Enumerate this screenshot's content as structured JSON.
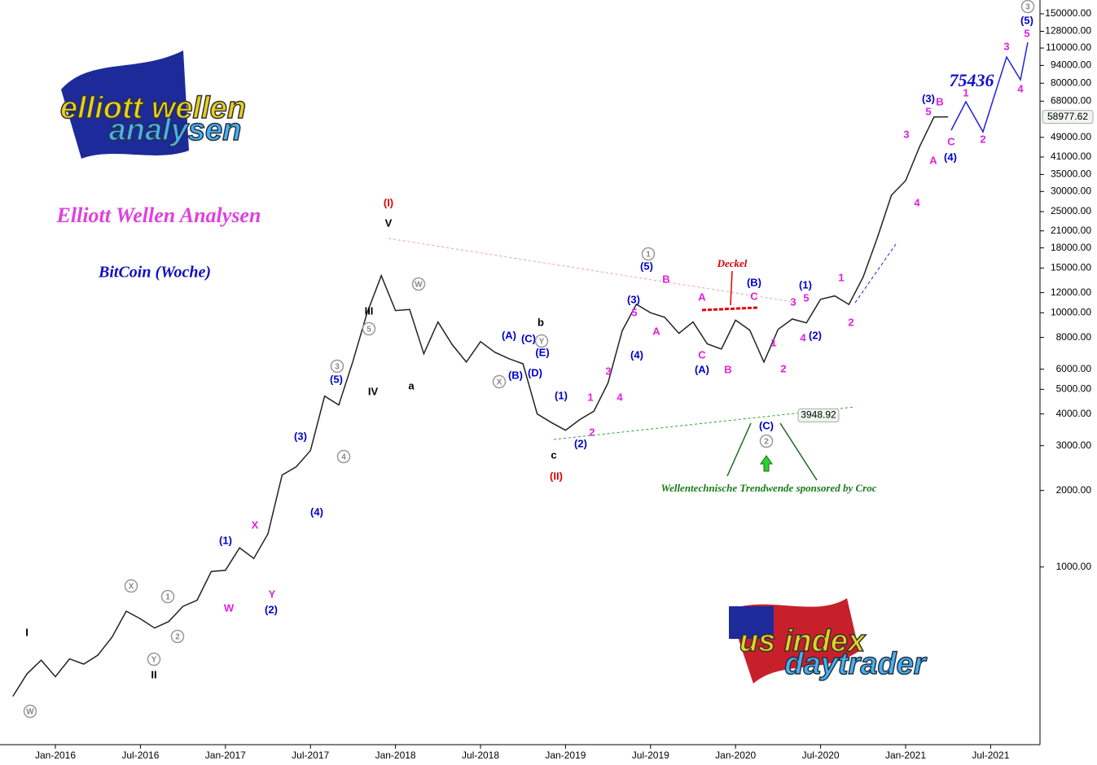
{
  "chart_data": {
    "type": "line",
    "title": "Elliott Wellen Analysen",
    "subtitle": "BitCoin (Woche)",
    "logo_top": [
      "elliott wellen",
      "analysen"
    ],
    "logo_bottom": [
      "us index",
      "daytrader"
    ],
    "annotation_note": "Wellentechnische Trendwende sponsored by Croc",
    "low_label": {
      "value": 3948.92,
      "label": "3948.92"
    },
    "last_label": {
      "value": 58977.62,
      "label": "58977.62"
    },
    "target_label": "75436",
    "log_scale": true,
    "color": "#222222",
    "x": [
      "2015-10",
      "2015-11",
      "2015-12",
      "2016-01",
      "2016-02",
      "2016-03",
      "2016-04",
      "2016-05",
      "2016-06",
      "2016-07",
      "2016-08",
      "2016-09",
      "2016-10",
      "2016-11",
      "2016-12",
      "2017-01",
      "2017-02",
      "2017-03",
      "2017-04",
      "2017-05",
      "2017-06",
      "2017-07",
      "2017-08",
      "2017-09",
      "2017-10",
      "2017-11",
      "2017-12",
      "2018-01",
      "2018-02",
      "2018-03",
      "2018-04",
      "2018-05",
      "2018-06",
      "2018-07",
      "2018-08",
      "2018-09",
      "2018-10",
      "2018-11",
      "2018-12",
      "2019-01",
      "2019-02",
      "2019-03",
      "2019-04",
      "2019-05",
      "2019-06",
      "2019-07",
      "2019-08",
      "2019-09",
      "2019-10",
      "2019-11",
      "2019-12",
      "2020-01",
      "2020-02",
      "2020-03",
      "2020-04",
      "2020-05",
      "2020-06",
      "2020-07",
      "2020-08",
      "2020-09",
      "2020-10",
      "2020-11",
      "2020-12",
      "2021-01",
      "2021-02",
      "2021-03",
      "2021-04"
    ],
    "values": [
      310,
      380,
      430,
      370,
      435,
      415,
      450,
      530,
      670,
      625,
      575,
      610,
      700,
      740,
      960,
      970,
      1190,
      1080,
      1350,
      2300,
      2480,
      2870,
      4700,
      4340,
      6450,
      10000,
      14000,
      10200,
      10300,
      6900,
      9200,
      7500,
      6400,
      7700,
      7000,
      6600,
      6300,
      4000,
      3700,
      3450,
      3800,
      4100,
      5300,
      8500,
      10800,
      10000,
      9600,
      8300,
      9200,
      7550,
      7200,
      9350,
      8550,
      6400,
      8600,
      9450,
      9130,
      11300,
      11650,
      10780,
      13800,
      19700,
      29000,
      33100,
      45200,
      58900,
      58977.62
    ],
    "xlim": [
      "2015-09",
      "2021-10"
    ],
    "xticks": [
      {
        "value": "2016-01",
        "label": "Jan-2016"
      },
      {
        "value": "2016-07",
        "label": "Jul-2016"
      },
      {
        "value": "2017-01",
        "label": "Jan-2017"
      },
      {
        "value": "2017-07",
        "label": "Jul-2017"
      },
      {
        "value": "2018-01",
        "label": "Jan-2018"
      },
      {
        "value": "2018-07",
        "label": "Jul-2018"
      },
      {
        "value": "2019-01",
        "label": "Jan-2019"
      },
      {
        "value": "2019-07",
        "label": "Jul-2019"
      },
      {
        "value": "2020-01",
        "label": "Jan-2020"
      },
      {
        "value": "2020-07",
        "label": "Jul-2020"
      },
      {
        "value": "2021-01",
        "label": "Jan-2021"
      },
      {
        "value": "2021-07",
        "label": "Jul-2021"
      }
    ],
    "ylim": [
      200,
      170000
    ],
    "yticks": [
      {
        "value": 1000,
        "label": "1000.00"
      },
      {
        "value": 2000,
        "label": "2000.00"
      },
      {
        "value": 3000,
        "label": "3000.00"
      },
      {
        "value": 4000,
        "label": "4000.00"
      },
      {
        "value": 5000,
        "label": "5000.00"
      },
      {
        "value": 6000,
        "label": "6000.00"
      },
      {
        "value": 8000,
        "label": "8000.00"
      },
      {
        "value": 10000,
        "label": "10000.00"
      },
      {
        "value": 12000,
        "label": "12000.00"
      },
      {
        "value": 15000,
        "label": "15000.00"
      },
      {
        "value": 18000,
        "label": "18000.00"
      },
      {
        "value": 21000,
        "label": "21000.00"
      },
      {
        "value": 25000,
        "label": "25000.00"
      },
      {
        "value": 30000,
        "label": "30000.00"
      },
      {
        "value": 35000,
        "label": "35000.00"
      },
      {
        "value": 41000,
        "label": "41000.00"
      },
      {
        "value": 49000,
        "label": "49000.00"
      },
      {
        "value": 68000,
        "label": "68000.00"
      },
      {
        "value": 80000,
        "label": "80000.00"
      },
      {
        "value": 94000,
        "label": "94000.00"
      },
      {
        "value": 110000,
        "label": "110000.00"
      },
      {
        "value": 128000,
        "label": "128000.00"
      },
      {
        "value": 150000,
        "label": "150000.00"
      }
    ],
    "wave_labels": [
      {
        "text": "(I)",
        "color": "#e00000"
      },
      {
        "text": "V",
        "color": "#000000"
      },
      {
        "text": "III",
        "color": "#000000"
      },
      {
        "text": "IV",
        "color": "#000000"
      },
      {
        "text": "a",
        "color": "#000000"
      },
      {
        "text": "b",
        "color": "#000000"
      },
      {
        "text": "c",
        "color": "#000000"
      },
      {
        "text": "(II)",
        "color": "#e00000"
      },
      {
        "text": "I",
        "color": "#000000"
      },
      {
        "text": "II",
        "color": "#000000"
      },
      {
        "text": "(1)",
        "color": "#0000cc"
      },
      {
        "text": "(2)",
        "color": "#0000cc"
      },
      {
        "text": "(3)",
        "color": "#0000cc"
      },
      {
        "text": "(4)",
        "color": "#0000cc"
      },
      {
        "text": "(5)",
        "color": "#0000cc"
      },
      {
        "text": "W",
        "color": "#e020e0"
      },
      {
        "text": "X",
        "color": "#e020e0"
      },
      {
        "text": "Y",
        "color": "#e020e0"
      },
      {
        "text": "(1)",
        "color": "#0000cc"
      },
      {
        "text": "(2)",
        "color": "#0000cc"
      },
      {
        "text": "1",
        "color": "#e020e0"
      },
      {
        "text": "2",
        "color": "#e020e0"
      },
      {
        "text": "3",
        "color": "#e020e0"
      },
      {
        "text": "4",
        "color": "#e020e0"
      },
      {
        "text": "5",
        "color": "#e020e0"
      },
      {
        "text": "(3)",
        "color": "#0000cc"
      },
      {
        "text": "(4)",
        "color": "#0000cc"
      },
      {
        "text": "(5)",
        "color": "#0000cc"
      },
      {
        "text": "A",
        "color": "#e020e0"
      },
      {
        "text": "B",
        "color": "#e020e0"
      },
      {
        "text": "A",
        "color": "#e020e0"
      },
      {
        "text": "C",
        "color": "#e020e0"
      },
      {
        "text": "(A)",
        "color": "#0000cc"
      },
      {
        "text": "B",
        "color": "#e020e0"
      },
      {
        "text": "C",
        "color": "#e020e0"
      },
      {
        "text": "(B)",
        "color": "#0000cc"
      },
      {
        "text": "Deckel",
        "color": "#e00000"
      },
      {
        "text": "(C)",
        "color": "#0000cc"
      },
      {
        "text": "1",
        "color": "#e020e0"
      },
      {
        "text": "2",
        "color": "#e020e0"
      },
      {
        "text": "3",
        "color": "#e020e0"
      },
      {
        "text": "4",
        "color": "#e020e0"
      },
      {
        "text": "5",
        "color": "#e020e0"
      },
      {
        "text": "(1)",
        "color": "#0000cc"
      },
      {
        "text": "(2)",
        "color": "#0000cc"
      },
      {
        "text": "1",
        "color": "#e020e0"
      },
      {
        "text": "2",
        "color": "#e020e0"
      },
      {
        "text": "3",
        "color": "#e020e0"
      },
      {
        "text": "4",
        "color": "#e020e0"
      },
      {
        "text": "5",
        "color": "#e020e0"
      },
      {
        "text": "(3)",
        "color": "#0000cc"
      },
      {
        "text": "B",
        "color": "#e020e0"
      },
      {
        "text": "A",
        "color": "#e020e0"
      },
      {
        "text": "C",
        "color": "#e020e0"
      },
      {
        "text": "(4)",
        "color": "#0000cc"
      },
      {
        "text": "1",
        "color": "#e020e0"
      },
      {
        "text": "2",
        "color": "#e020e0"
      },
      {
        "text": "3",
        "color": "#e020e0"
      },
      {
        "text": "4",
        "color": "#e020e0"
      },
      {
        "text": "5",
        "color": "#e020e0"
      },
      {
        "text": "(5)",
        "color": "#0000cc"
      },
      {
        "text": "(A)",
        "color": "#0000cc"
      },
      {
        "text": "(C)",
        "color": "#0000cc"
      },
      {
        "text": "(B)",
        "color": "#0000cc"
      },
      {
        "text": "(D)",
        "color": "#0000cc"
      },
      {
        "text": "(E)",
        "color": "#0000cc"
      }
    ],
    "circle_labels": [
      "W",
      "X",
      "Y",
      "1",
      "2",
      "3",
      "4",
      "5",
      "W",
      "X",
      "Y",
      "1",
      "2",
      "3"
    ]
  }
}
